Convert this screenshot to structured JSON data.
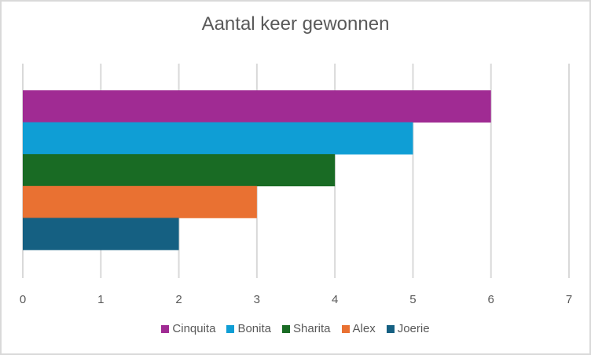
{
  "chart_data": {
    "type": "bar",
    "orientation": "horizontal",
    "title": "Aantal keer gewonnen",
    "xlabel": "",
    "ylabel": "",
    "xlim": [
      0,
      7
    ],
    "x_ticks": [
      "0",
      "1",
      "2",
      "3",
      "4",
      "5",
      "6",
      "7"
    ],
    "grid": true,
    "legend_position": "bottom",
    "series": [
      {
        "name": "Cinquita",
        "value": 6,
        "color": "#a02b93"
      },
      {
        "name": "Bonita",
        "value": 5,
        "color": "#0f9ed5"
      },
      {
        "name": "Sharita",
        "value": 4,
        "color": "#196b24"
      },
      {
        "name": "Alex",
        "value": 3,
        "color": "#e97132"
      },
      {
        "name": "Joerie",
        "value": 2,
        "color": "#156082"
      }
    ]
  }
}
